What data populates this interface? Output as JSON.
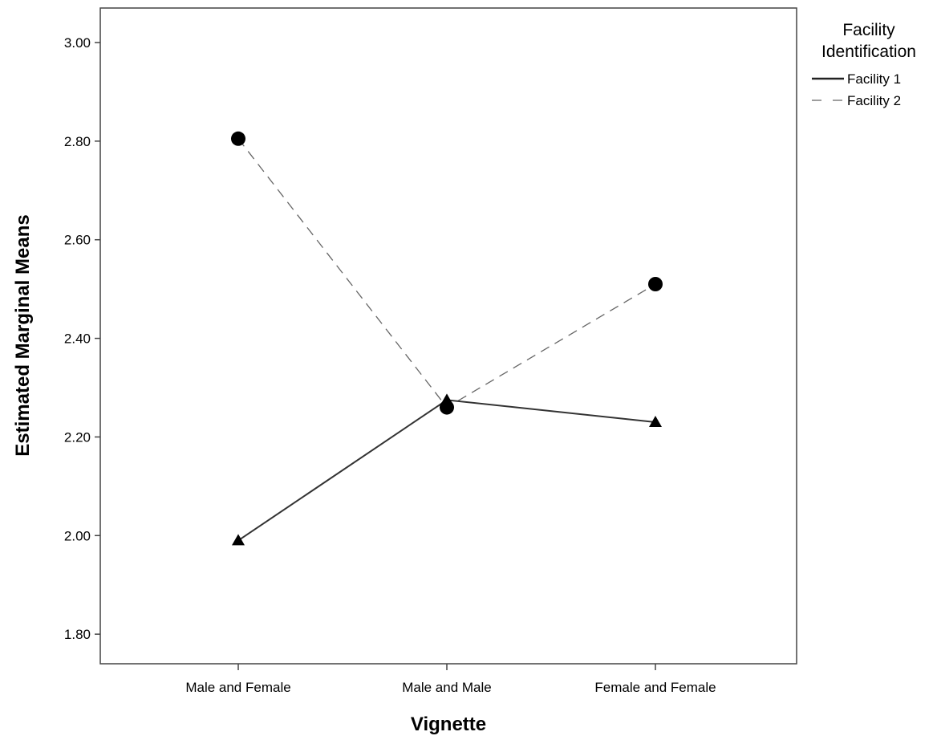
{
  "chart_data": {
    "type": "line",
    "xlabel": "Vignette",
    "ylabel": "Estimated Marginal Means",
    "categories": [
      "Male and Female",
      "Male and Male",
      "Female and Female"
    ],
    "ylim": [
      1.74,
      3.07
    ],
    "yticks": [
      "1.80",
      "2.00",
      "2.20",
      "2.40",
      "2.60",
      "2.80",
      "3.00"
    ],
    "grid": false,
    "legend": {
      "title_lines": [
        "Facility",
        "Identification"
      ],
      "placement": "right"
    },
    "series": [
      {
        "name": "Facility 1",
        "values": [
          1.99,
          2.275,
          2.23
        ],
        "line_style": "solid",
        "marker": "triangle",
        "color": "#000000"
      },
      {
        "name": "Facility 2",
        "values": [
          2.805,
          2.26,
          2.51
        ],
        "line_style": "dashed",
        "marker": "circle",
        "color": "#000000"
      }
    ]
  }
}
